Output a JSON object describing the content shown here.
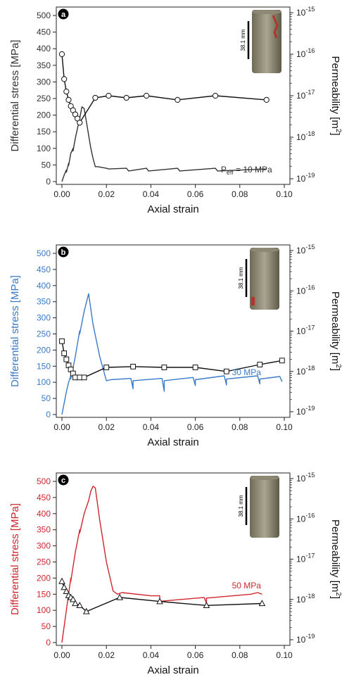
{
  "chart_data": [
    {
      "type": "line",
      "panel_label": "a",
      "color": "#333333",
      "xlabel": "Axial strain",
      "ylabel": "Differential stress [MPa]",
      "y2label_main": "Permeability [m",
      "y2label_sup": "2",
      "y2label_end": "]",
      "xlim": [
        0,
        0.1
      ],
      "ylim": [
        0,
        500
      ],
      "y2lim_log10": [
        -19,
        -15
      ],
      "x_ticks": [
        "0.00",
        "0.02",
        "0.04",
        "0.06",
        "0.08",
        "0.10"
      ],
      "y_ticks": [
        "0",
        "50",
        "100",
        "150",
        "200",
        "250",
        "300",
        "350",
        "400",
        "450",
        "500"
      ],
      "y2_ticks": [
        "-19",
        "-18",
        "-17",
        "-16",
        "-15"
      ],
      "y2_tick_base": "10",
      "annotation_main": "P",
      "annotation_sub": "eff",
      "annotation_end": " = 10 MPa",
      "scale_label": "38.1 mm",
      "stress_series": {
        "x": [
          0.0,
          0.001,
          0.002,
          0.002,
          0.003,
          0.003,
          0.004,
          0.005,
          0.005,
          0.006,
          0.007,
          0.008,
          0.009,
          0.01,
          0.011,
          0.012,
          0.013,
          0.014,
          0.015,
          0.016,
          0.02,
          0.021,
          0.029,
          0.03,
          0.038,
          0.039,
          0.052,
          0.053,
          0.069,
          0.07,
          0.092
        ],
        "y": [
          0,
          20,
          35,
          28,
          55,
          48,
          85,
          100,
          92,
          130,
          160,
          190,
          225,
          220,
          180,
          140,
          100,
          70,
          45,
          45,
          40,
          38,
          40,
          32,
          40,
          32,
          40,
          32,
          40,
          32,
          38
        ]
      },
      "perm_series": {
        "marker": "circle",
        "x": [
          0.0,
          0.001,
          0.002,
          0.003,
          0.004,
          0.005,
          0.006,
          0.007,
          0.008,
          0.015,
          0.021,
          0.029,
          0.038,
          0.052,
          0.069,
          0.092
        ],
        "log10_perm": [
          -16.0,
          -16.6,
          -16.9,
          -17.1,
          -17.25,
          -17.35,
          -17.45,
          -17.55,
          -17.65,
          -17.05,
          -17.0,
          -17.05,
          -17.0,
          -17.1,
          -17.0,
          -17.1
        ]
      }
    },
    {
      "type": "line",
      "panel_label": "b",
      "color": "#3a7ac8",
      "xlabel": "Axial strain",
      "ylabel": "Differential stress [MPa]",
      "y2label_main": "Permeability [m",
      "y2label_sup": "2",
      "y2label_end": "]",
      "xlim": [
        0,
        0.1
      ],
      "ylim": [
        0,
        500
      ],
      "y2lim_log10": [
        -19,
        -15
      ],
      "x_ticks": [
        "0.00",
        "0.02",
        "0.04",
        "0.06",
        "0.08",
        "0.10"
      ],
      "y_ticks": [
        "0",
        "50",
        "100",
        "150",
        "200",
        "250",
        "300",
        "350",
        "400",
        "450",
        "500"
      ],
      "y2_ticks": [
        "-19",
        "-18",
        "-17",
        "-16",
        "-15"
      ],
      "y2_tick_base": "10",
      "annotation_main": "30 MPa",
      "annotation_sub": "",
      "annotation_end": "",
      "scale_label": "38.1 mm",
      "stress_series": {
        "x": [
          0.0,
          0.002,
          0.003,
          0.004,
          0.004,
          0.006,
          0.007,
          0.008,
          0.008,
          0.01,
          0.012,
          0.014,
          0.017,
          0.02,
          0.022,
          0.031,
          0.032,
          0.032,
          0.045,
          0.046,
          0.046,
          0.059,
          0.06,
          0.06,
          0.073,
          0.074,
          0.074,
          0.088,
          0.089,
          0.089,
          0.098,
          0.099
        ],
        "y": [
          0,
          70,
          100,
          120,
          110,
          180,
          220,
          260,
          250,
          320,
          375,
          280,
          180,
          105,
          108,
          112,
          80,
          105,
          112,
          72,
          105,
          115,
          90,
          108,
          120,
          92,
          110,
          120,
          95,
          110,
          118,
          102
        ]
      },
      "perm_series": {
        "marker": "square",
        "x": [
          0.0,
          0.001,
          0.002,
          0.003,
          0.004,
          0.005,
          0.006,
          0.008,
          0.01,
          0.02,
          0.032,
          0.046,
          0.06,
          0.074,
          0.089,
          0.099
        ],
        "log10_perm": [
          -17.25,
          -17.55,
          -17.7,
          -17.85,
          -17.95,
          -18.05,
          -18.15,
          -18.15,
          -18.15,
          -17.9,
          -17.88,
          -17.9,
          -17.9,
          -18.0,
          -17.83,
          -17.73
        ]
      }
    },
    {
      "type": "line",
      "panel_label": "c",
      "color": "#d0262f",
      "xlabel": "Axial strain",
      "ylabel": "Differential stress [MPa]",
      "y2label_main": "Permeability [m",
      "y2label_sup": "2",
      "y2label_end": "]",
      "xlim": [
        0,
        0.1
      ],
      "ylim": [
        0,
        500
      ],
      "y2lim_log10": [
        -19,
        -15
      ],
      "x_ticks": [
        "0.00",
        "0.02",
        "0.04",
        "0.06",
        "0.08",
        "0.10"
      ],
      "y_ticks": [
        "0",
        "50",
        "100",
        "150",
        "200",
        "250",
        "300",
        "350",
        "400",
        "450",
        "500"
      ],
      "y2_ticks": [
        "-19",
        "-18",
        "-17",
        "-16",
        "-15"
      ],
      "y2_tick_base": "10",
      "annotation_main": "50 MPa",
      "annotation_sub": "",
      "annotation_end": "",
      "scale_label": "38.1 mm",
      "stress_series": {
        "x": [
          0.0,
          0.002,
          0.004,
          0.004,
          0.006,
          0.008,
          0.008,
          0.01,
          0.012,
          0.013,
          0.014,
          0.015,
          0.017,
          0.02,
          0.023,
          0.025,
          0.027,
          0.04,
          0.044,
          0.044,
          0.064,
          0.065,
          0.065,
          0.085,
          0.088,
          0.09
        ],
        "y": [
          0,
          100,
          200,
          190,
          280,
          350,
          340,
          400,
          440,
          470,
          485,
          480,
          380,
          250,
          160,
          150,
          155,
          145,
          145,
          128,
          140,
          122,
          138,
          150,
          155,
          150
        ]
      },
      "perm_series": {
        "marker": "triangle",
        "x": [
          0.0,
          0.001,
          0.002,
          0.003,
          0.004,
          0.005,
          0.006,
          0.008,
          0.011,
          0.026,
          0.044,
          0.065,
          0.09
        ],
        "log10_perm": [
          -17.55,
          -17.7,
          -17.8,
          -17.9,
          -17.95,
          -18.0,
          -18.1,
          -18.15,
          -18.3,
          -17.95,
          -18.05,
          -18.15,
          -18.1
        ]
      }
    }
  ]
}
